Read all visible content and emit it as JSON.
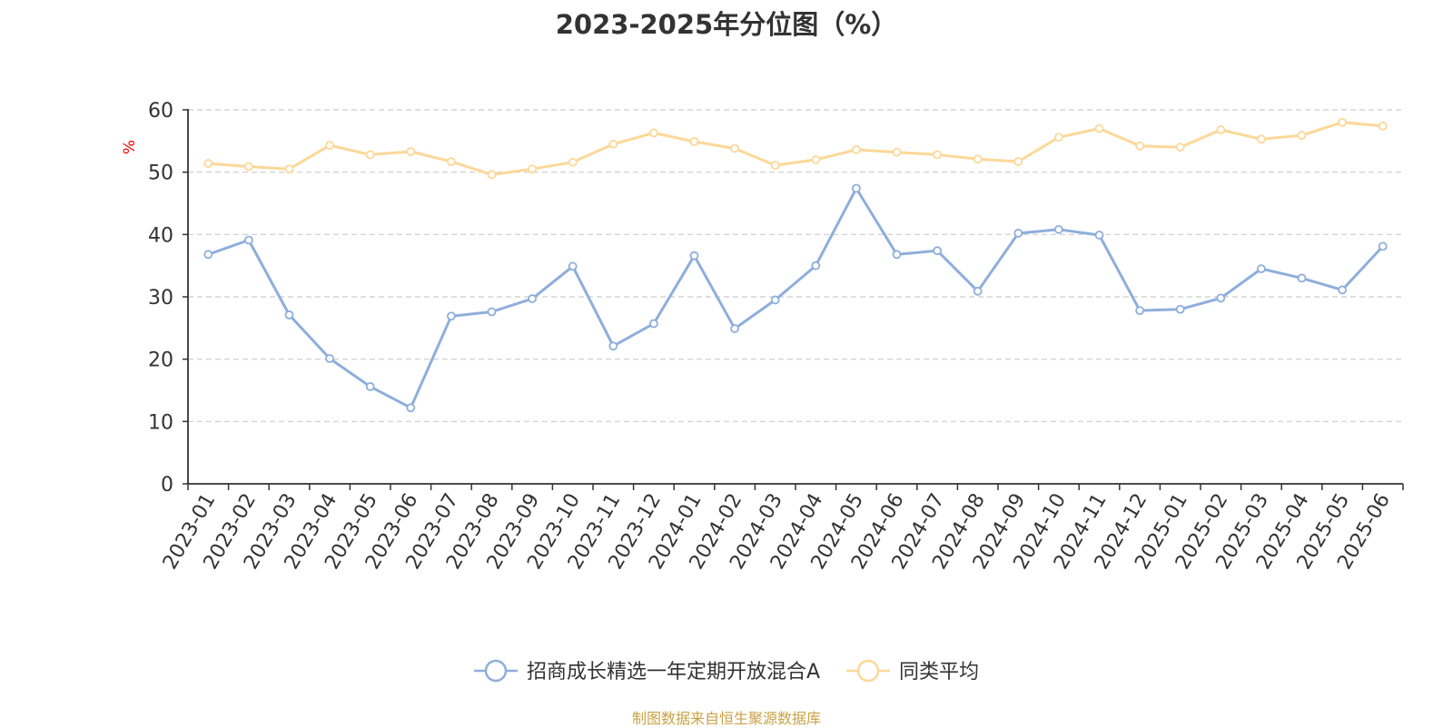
{
  "chart_data": {
    "type": "line",
    "title": "2023-2025年分位图（%）",
    "ylabel": "%",
    "ylim": [
      0,
      60
    ],
    "yticks": [
      0,
      10,
      20,
      30,
      40,
      50,
      60
    ],
    "grid": true,
    "legend_position": "bottom",
    "categories": [
      "2023-01",
      "2023-02",
      "2023-03",
      "2023-04",
      "2023-05",
      "2023-06",
      "2023-07",
      "2023-08",
      "2023-09",
      "2023-10",
      "2023-11",
      "2023-12",
      "2024-01",
      "2024-02",
      "2024-03",
      "2024-04",
      "2024-05",
      "2024-06",
      "2024-07",
      "2024-08",
      "2024-09",
      "2024-10",
      "2024-11",
      "2024-12",
      "2025-01",
      "2025-02",
      "2025-03",
      "2025-04",
      "2025-05",
      "2025-06"
    ],
    "series": [
      {
        "name": "招商成长精选一年定期开放混合A",
        "color": "#8eaedb",
        "values": [
          36.8,
          39.1,
          27.1,
          20.1,
          15.6,
          12.2,
          26.9,
          27.6,
          29.7,
          34.9,
          22.1,
          25.7,
          36.6,
          24.9,
          29.5,
          35.0,
          47.4,
          36.8,
          37.4,
          30.9,
          40.2,
          40.8,
          39.9,
          27.8,
          28.0,
          29.8,
          34.5,
          33.0,
          31.1,
          38.1
        ]
      },
      {
        "name": "同类平均",
        "color": "#fcd898",
        "values": [
          51.4,
          50.9,
          50.5,
          54.3,
          52.8,
          53.3,
          51.7,
          49.6,
          50.5,
          51.6,
          54.5,
          56.3,
          54.9,
          53.8,
          51.1,
          52.0,
          53.6,
          53.2,
          52.8,
          52.1,
          51.7,
          55.6,
          57.0,
          54.2,
          54.0,
          56.8,
          55.3,
          55.9,
          58.0,
          57.4
        ]
      }
    ]
  },
  "footer": {
    "source": "制图数据来自恒生聚源数据库",
    "color": "#c9a246"
  },
  "colors": {
    "axis": "#333333",
    "grid": "#cccccc",
    "ylabel": "#ff0000"
  }
}
